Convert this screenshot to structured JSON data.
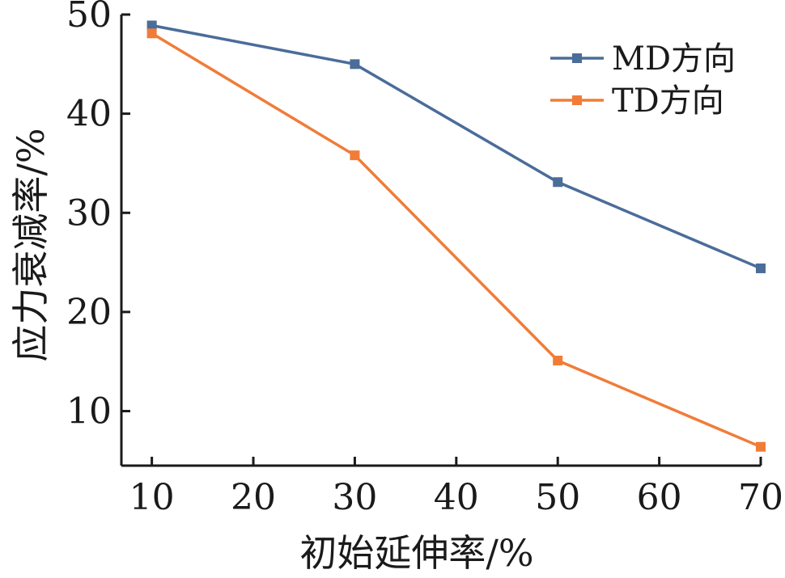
{
  "chart_data": {
    "type": "line",
    "xlabel": "初始延伸率/%",
    "ylabel": "应力衰减率/%",
    "xlim": [
      7,
      70
    ],
    "ylim": [
      4.5,
      50
    ],
    "x_ticks": [
      10,
      20,
      30,
      40,
      50,
      60,
      70
    ],
    "x_tick_labels": [
      "10",
      "20",
      "30",
      "40",
      "50",
      "60",
      "70"
    ],
    "y_ticks": [
      10,
      20,
      30,
      40,
      50
    ],
    "y_tick_labels": [
      "10",
      "20",
      "30",
      "40",
      "50"
    ],
    "grid": false,
    "legend_position": "top-right",
    "series": [
      {
        "name": "MD方向",
        "color": "#4a6d9a",
        "x": [
          10,
          30,
          50,
          70
        ],
        "y": [
          48.9,
          45.0,
          33.1,
          24.4
        ]
      },
      {
        "name": "TD方向",
        "color": "#f07c38",
        "x": [
          10,
          30,
          50,
          70
        ],
        "y": [
          48.1,
          35.8,
          15.1,
          6.4
        ]
      }
    ]
  }
}
